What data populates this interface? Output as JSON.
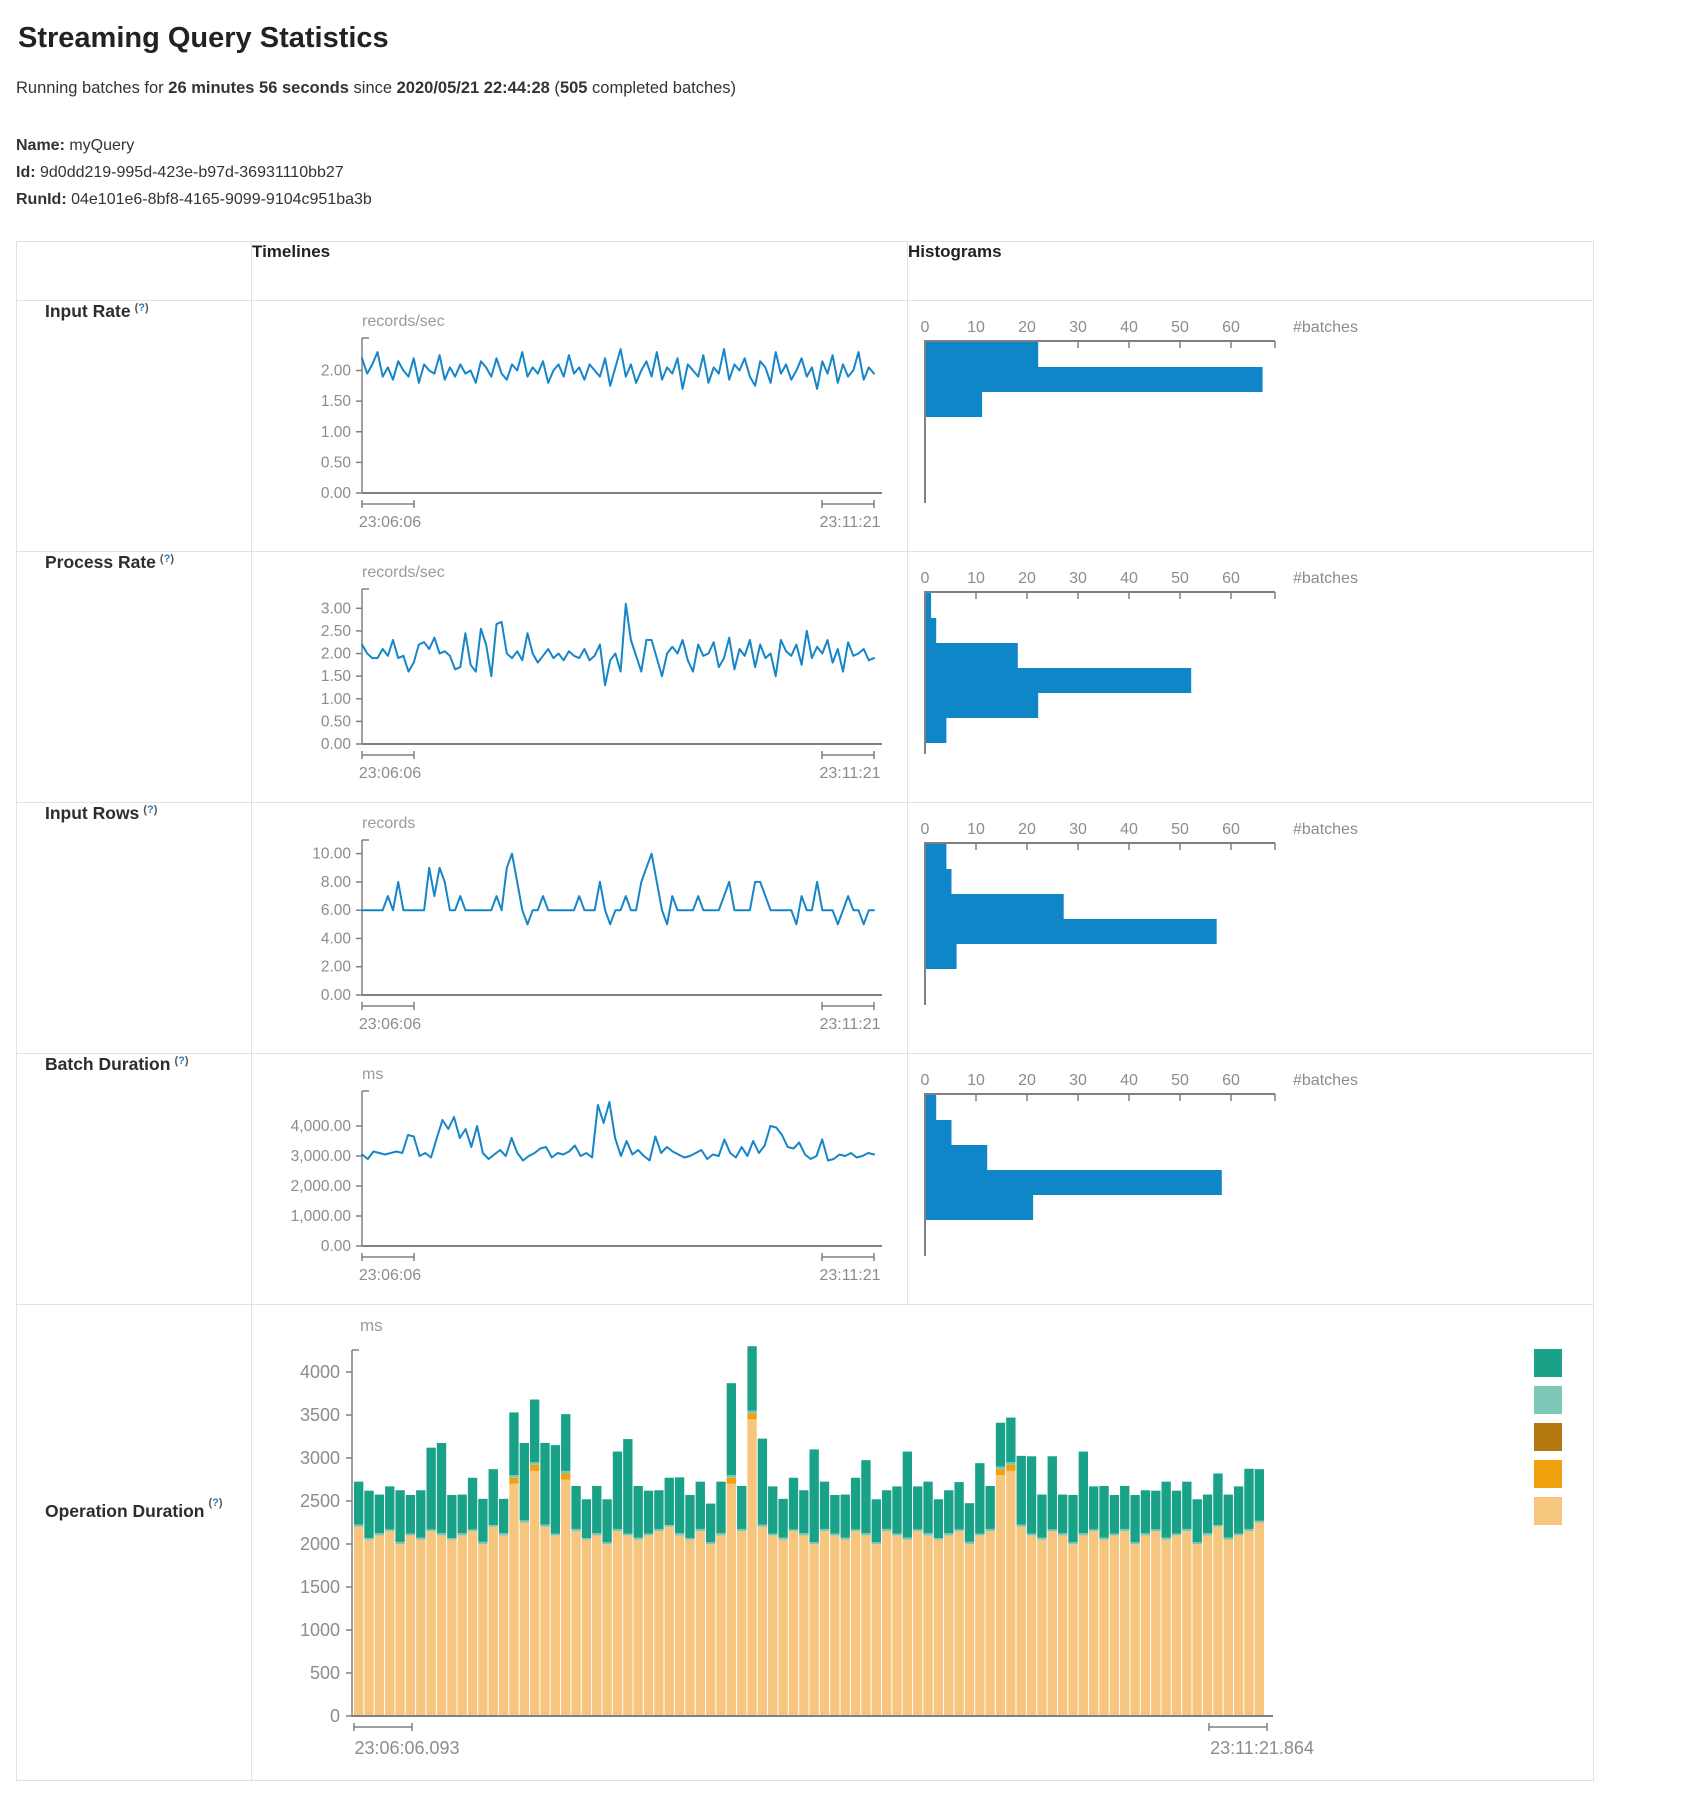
{
  "page": {
    "title": "Streaming Query Statistics",
    "subtitle": {
      "prefix": "Running batches for ",
      "duration": "26 minutes 56 seconds",
      "since_word": " since ",
      "start_time": "2020/05/21 22:44:28",
      "open_paren": " (",
      "completed_count": "505",
      "completed_suffix": " completed batches)"
    },
    "query": {
      "name_label": "Name:",
      "name": " myQuery",
      "id_label": "Id:",
      "id": " 9d0dd219-995d-423e-b97d-36931110bb27",
      "runid_label": "RunId:",
      "runid": " 04e101e6-8bf8-4165-9099-9104c951ba3b"
    }
  },
  "table": {
    "timelines_header": "Timelines",
    "histograms_header": "Histograms",
    "help": {
      "open": "(",
      "q": "?",
      "close": ")"
    },
    "rows": [
      {
        "label": "Input Rate"
      },
      {
        "label": "Process Rate"
      },
      {
        "label": "Input Rows"
      },
      {
        "label": "Batch Duration"
      },
      {
        "label": "Operation Duration"
      }
    ]
  },
  "colors": {
    "line_blue": "#1686c8",
    "histogram_blue": "#0f86c8",
    "axis_gray": "#808080",
    "tick_text_gray": "#8c8c8c",
    "legend": [
      "#1aa288",
      "#7cc7b6",
      "#b5770f",
      "#f2a10e",
      "#f6c57e"
    ],
    "stack_segments": [
      "#f6c57e",
      "#f2a10e",
      "#7cc7b6",
      "#1aa288"
    ]
  },
  "chart_data": [
    {
      "id": "input_rate_timeline",
      "type": "line",
      "title": "records/sec",
      "x_start_label": "23:06:06",
      "x_end_label": "23:11:21",
      "y_max": 2.4,
      "grid": false,
      "y_ticks": [
        {
          "v": 2,
          "label": "2.00"
        },
        {
          "v": 1.5,
          "label": "1.50"
        },
        {
          "v": 1,
          "label": "1.00"
        },
        {
          "v": 0.5,
          "label": "0.50"
        },
        {
          "v": 0,
          "label": "0.00"
        }
      ],
      "values": [
        2.2,
        1.95,
        2.1,
        2.3,
        1.9,
        2.05,
        1.85,
        2.15,
        2.0,
        1.9,
        2.2,
        1.8,
        2.1,
        2.0,
        1.95,
        2.25,
        1.85,
        2.05,
        1.9,
        2.1,
        1.95,
        2.0,
        1.8,
        2.15,
        2.05,
        1.9,
        2.2,
        1.95,
        1.85,
        2.1,
        2.0,
        2.3,
        1.9,
        2.05,
        1.95,
        2.15,
        1.8,
        2.0,
        2.1,
        1.9,
        2.25,
        1.95,
        2.05,
        1.85,
        2.1,
        2.0,
        1.9,
        2.2,
        1.75,
        2.05,
        2.35,
        1.9,
        2.1,
        1.8,
        2.0,
        2.15,
        1.9,
        2.3,
        1.85,
        2.05,
        1.95,
        2.2,
        1.7,
        2.1,
        2.0,
        1.9,
        2.25,
        1.8,
        2.05,
        1.95,
        2.35,
        1.85,
        2.1,
        2.0,
        2.2,
        1.9,
        1.75,
        2.15,
        2.05,
        1.8,
        2.3,
        1.95,
        2.1,
        1.85,
        2.0,
        2.2,
        1.9,
        2.05,
        1.7,
        2.15,
        1.95,
        2.25,
        1.8,
        2.1,
        1.9,
        2.0,
        2.3,
        1.85,
        2.05,
        1.95
      ]
    },
    {
      "id": "input_rate_histogram",
      "type": "bar",
      "orientation": "horizontal",
      "axis_label": "#batches",
      "x_ticks": [
        0,
        10,
        20,
        30,
        40,
        50,
        60
      ],
      "values": [
        22,
        66,
        11
      ]
    },
    {
      "id": "process_rate_timeline",
      "type": "line",
      "title": "records/sec",
      "x_start_label": "23:06:06",
      "x_end_label": "23:11:21",
      "y_max": 3.25,
      "grid": false,
      "y_ticks": [
        {
          "v": 3,
          "label": "3.00"
        },
        {
          "v": 2.5,
          "label": "2.50"
        },
        {
          "v": 2,
          "label": "2.00"
        },
        {
          "v": 1.5,
          "label": "1.50"
        },
        {
          "v": 1,
          "label": "1.00"
        },
        {
          "v": 0.5,
          "label": "0.50"
        },
        {
          "v": 0,
          "label": "0.00"
        }
      ],
      "values": [
        2.2,
        2.0,
        1.9,
        1.9,
        2.1,
        1.95,
        2.3,
        1.9,
        1.95,
        1.6,
        1.8,
        2.2,
        2.25,
        2.1,
        2.35,
        2.0,
        2.05,
        1.95,
        1.65,
        1.7,
        2.45,
        1.75,
        1.6,
        2.55,
        2.2,
        1.5,
        2.65,
        2.7,
        2.0,
        1.9,
        2.05,
        1.85,
        2.45,
        2.0,
        1.8,
        1.95,
        2.1,
        1.9,
        2.0,
        1.85,
        2.05,
        1.95,
        1.9,
        2.1,
        1.85,
        1.95,
        2.2,
        1.3,
        1.85,
        2.0,
        1.6,
        3.1,
        2.3,
        1.95,
        1.6,
        2.3,
        2.3,
        1.9,
        1.5,
        2.0,
        2.15,
        2.0,
        2.3,
        1.85,
        1.6,
        2.2,
        1.95,
        2.0,
        2.25,
        1.7,
        1.9,
        2.35,
        1.65,
        2.1,
        1.95,
        2.3,
        1.7,
        2.2,
        1.9,
        2.0,
        1.5,
        2.3,
        2.05,
        1.95,
        2.2,
        1.75,
        2.5,
        1.9,
        2.15,
        2.0,
        2.3,
        1.8,
        2.1,
        1.6,
        2.25,
        1.95,
        2.0,
        2.1,
        1.85,
        1.9
      ]
    },
    {
      "id": "process_rate_histogram",
      "type": "bar",
      "orientation": "horizontal",
      "axis_label": "#batches",
      "x_ticks": [
        0,
        10,
        20,
        30,
        40,
        50,
        60
      ],
      "values": [
        1,
        2,
        18,
        52,
        22,
        4
      ]
    },
    {
      "id": "input_rows_timeline",
      "type": "line",
      "title": "records",
      "x_start_label": "23:06:06",
      "x_end_label": "23:11:21",
      "y_max": 10.4,
      "grid": false,
      "y_ticks": [
        {
          "v": 10,
          "label": "10.00"
        },
        {
          "v": 8,
          "label": "8.00"
        },
        {
          "v": 6,
          "label": "6.00"
        },
        {
          "v": 4,
          "label": "4.00"
        },
        {
          "v": 2,
          "label": "2.00"
        },
        {
          "v": 0,
          "label": "0.00"
        }
      ],
      "values": [
        6,
        6,
        6,
        6,
        6,
        7,
        6,
        8,
        6,
        6,
        6,
        6,
        6,
        9,
        7,
        9,
        8,
        6,
        6,
        7,
        6,
        6,
        6,
        6,
        6,
        6,
        7,
        6,
        9,
        10,
        8,
        6,
        5,
        6,
        6,
        7,
        6,
        6,
        6,
        6,
        6,
        6,
        7,
        6,
        6,
        6,
        8,
        6,
        5,
        6,
        6,
        7,
        6,
        6,
        8,
        9,
        10,
        8,
        6,
        5,
        7,
        6,
        6,
        6,
        6,
        7,
        6,
        6,
        6,
        6,
        7,
        8,
        6,
        6,
        6,
        6,
        8,
        8,
        7,
        6,
        6,
        6,
        6,
        6,
        5,
        7,
        6,
        6,
        8,
        6,
        6,
        6,
        5,
        6,
        7,
        6,
        6,
        5,
        6,
        6
      ]
    },
    {
      "id": "input_rows_histogram",
      "type": "bar",
      "orientation": "horizontal",
      "axis_label": "#batches",
      "x_ticks": [
        0,
        10,
        20,
        30,
        40,
        50,
        60
      ],
      "values": [
        4,
        5,
        27,
        57,
        6
      ]
    },
    {
      "id": "batch_duration_timeline",
      "type": "line",
      "title": "ms",
      "x_start_label": "23:06:06",
      "x_end_label": "23:11:21",
      "y_max": 4900,
      "grid": false,
      "y_ticks": [
        {
          "v": 4000,
          "label": "4,000.00"
        },
        {
          "v": 3000,
          "label": "3,000.00"
        },
        {
          "v": 2000,
          "label": "2,000.00"
        },
        {
          "v": 1000,
          "label": "1,000.00"
        },
        {
          "v": 0,
          "label": "0.00"
        }
      ],
      "values": [
        3050,
        2900,
        3150,
        3100,
        3050,
        3100,
        3150,
        3100,
        3700,
        3650,
        3000,
        3100,
        2950,
        3600,
        4200,
        3900,
        4300,
        3600,
        3900,
        3300,
        4000,
        3100,
        2900,
        3050,
        3200,
        3000,
        3600,
        3100,
        2850,
        3000,
        3100,
        3250,
        3300,
        2950,
        3100,
        3050,
        3150,
        3350,
        3000,
        3100,
        2950,
        4700,
        4100,
        4800,
        3600,
        3000,
        3500,
        3050,
        3200,
        3000,
        2850,
        3650,
        3100,
        3300,
        3150,
        3050,
        2950,
        3000,
        3100,
        3200,
        2900,
        3050,
        3000,
        3550,
        3100,
        2950,
        3300,
        3000,
        3500,
        3100,
        3350,
        4000,
        3950,
        3700,
        3300,
        3250,
        3450,
        3050,
        2900,
        3000,
        3550,
        2850,
        2900,
        3050,
        3000,
        3100,
        2950,
        3000,
        3100,
        3050
      ]
    },
    {
      "id": "batch_duration_histogram",
      "type": "bar",
      "orientation": "horizontal",
      "axis_label": "#batches",
      "x_ticks": [
        0,
        10,
        20,
        30,
        40,
        50,
        60
      ],
      "values": [
        2,
        5,
        12,
        58,
        21
      ]
    },
    {
      "id": "operation_duration",
      "type": "bar",
      "stacked": true,
      "title": "ms",
      "x_start_label": "23:06:06.093",
      "x_end_label": "23:11:21.864",
      "y_max": 4300,
      "grid": false,
      "legend_position": "right",
      "y_ticks": [
        {
          "v": 4000,
          "label": "4000"
        },
        {
          "v": 3500,
          "label": "3500"
        },
        {
          "v": 3000,
          "label": "3000"
        },
        {
          "v": 2500,
          "label": "2500"
        },
        {
          "v": 2000,
          "label": "2000"
        },
        {
          "v": 1500,
          "label": "1500"
        },
        {
          "v": 1000,
          "label": "1000"
        },
        {
          "v": 500,
          "label": "500"
        },
        {
          "v": 0,
          "label": "0"
        }
      ],
      "bars": [
        [
          2200,
          0,
          25,
          500
        ],
        [
          2050,
          0,
          20,
          550
        ],
        [
          2100,
          0,
          25,
          450
        ],
        [
          2150,
          0,
          20,
          500
        ],
        [
          2000,
          0,
          25,
          600
        ],
        [
          2100,
          0,
          20,
          450
        ],
        [
          2050,
          0,
          25,
          550
        ],
        [
          2150,
          0,
          20,
          950
        ],
        [
          2100,
          0,
          25,
          1050
        ],
        [
          2050,
          0,
          20,
          500
        ],
        [
          2100,
          0,
          25,
          450
        ],
        [
          2150,
          0,
          20,
          600
        ],
        [
          2000,
          0,
          25,
          500
        ],
        [
          2200,
          0,
          20,
          650
        ],
        [
          2100,
          0,
          25,
          400
        ],
        [
          2700,
          70,
          30,
          730
        ],
        [
          2250,
          0,
          25,
          900
        ],
        [
          2850,
          70,
          30,
          730
        ],
        [
          2200,
          0,
          25,
          950
        ],
        [
          2100,
          0,
          20,
          1030
        ],
        [
          2750,
          70,
          30,
          660
        ],
        [
          2150,
          0,
          25,
          500
        ],
        [
          2050,
          0,
          20,
          450
        ],
        [
          2100,
          0,
          25,
          550
        ],
        [
          2000,
          0,
          20,
          500
        ],
        [
          2150,
          0,
          25,
          900
        ],
        [
          2100,
          0,
          20,
          1100
        ],
        [
          2050,
          0,
          25,
          600
        ],
        [
          2100,
          0,
          20,
          500
        ],
        [
          2150,
          0,
          25,
          450
        ],
        [
          2200,
          0,
          20,
          550
        ],
        [
          2100,
          0,
          25,
          650
        ],
        [
          2050,
          0,
          20,
          500
        ],
        [
          2150,
          0,
          25,
          550
        ],
        [
          2000,
          0,
          20,
          450
        ],
        [
          2100,
          0,
          25,
          600
        ],
        [
          2700,
          70,
          30,
          1070
        ],
        [
          2150,
          0,
          25,
          500
        ],
        [
          3450,
          70,
          30,
          750
        ],
        [
          2200,
          0,
          25,
          1000
        ],
        [
          2100,
          0,
          20,
          550
        ],
        [
          2050,
          0,
          25,
          450
        ],
        [
          2150,
          0,
          20,
          600
        ],
        [
          2100,
          0,
          25,
          500
        ],
        [
          2000,
          0,
          20,
          1080
        ],
        [
          2150,
          0,
          25,
          550
        ],
        [
          2100,
          0,
          20,
          450
        ],
        [
          2050,
          0,
          25,
          500
        ],
        [
          2150,
          0,
          20,
          600
        ],
        [
          2100,
          0,
          25,
          850
        ],
        [
          2000,
          0,
          20,
          500
        ],
        [
          2150,
          0,
          25,
          450
        ],
        [
          2100,
          0,
          20,
          550
        ],
        [
          2050,
          0,
          25,
          1000
        ],
        [
          2150,
          0,
          20,
          500
        ],
        [
          2100,
          0,
          25,
          600
        ],
        [
          2050,
          0,
          20,
          450
        ],
        [
          2100,
          0,
          25,
          500
        ],
        [
          2150,
          0,
          20,
          550
        ],
        [
          2000,
          0,
          25,
          450
        ],
        [
          2100,
          0,
          20,
          820
        ],
        [
          2150,
          0,
          25,
          500
        ],
        [
          2800,
          70,
          30,
          510
        ],
        [
          2850,
          70,
          30,
          520
        ],
        [
          2200,
          0,
          25,
          800
        ],
        [
          2100,
          0,
          20,
          900
        ],
        [
          2050,
          0,
          25,
          500
        ],
        [
          2150,
          0,
          20,
          850
        ],
        [
          2100,
          0,
          25,
          450
        ],
        [
          2000,
          0,
          20,
          550
        ],
        [
          2100,
          0,
          25,
          950
        ],
        [
          2150,
          0,
          20,
          500
        ],
        [
          2050,
          0,
          25,
          600
        ],
        [
          2100,
          0,
          20,
          450
        ],
        [
          2150,
          0,
          25,
          500
        ],
        [
          2000,
          0,
          20,
          550
        ],
        [
          2100,
          0,
          25,
          500
        ],
        [
          2150,
          0,
          20,
          450
        ],
        [
          2050,
          0,
          25,
          650
        ],
        [
          2100,
          0,
          20,
          500
        ],
        [
          2150,
          0,
          25,
          550
        ],
        [
          2000,
          0,
          20,
          500
        ],
        [
          2100,
          0,
          25,
          450
        ],
        [
          2200,
          0,
          20,
          600
        ],
        [
          2050,
          0,
          25,
          500
        ],
        [
          2100,
          0,
          20,
          550
        ],
        [
          2150,
          0,
          25,
          700
        ],
        [
          2250,
          0,
          20,
          600
        ]
      ]
    }
  ]
}
